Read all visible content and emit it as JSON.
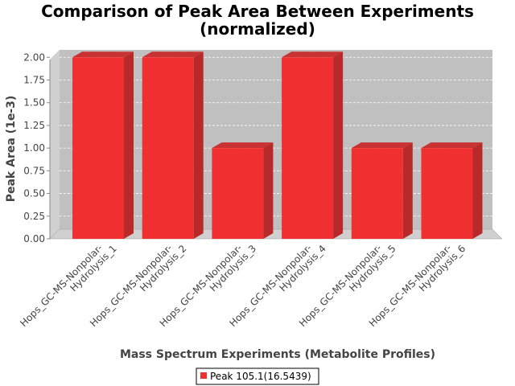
{
  "chart_data": {
    "type": "bar",
    "title_lines": [
      "Comparison of Peak Area Between Experiments",
      "(normalized)"
    ],
    "xlabel": "Mass Spectrum Experiments (Metabolite Profiles)",
    "ylabel": "Peak Area (1e-3)",
    "categories": [
      [
        "Hops_GC-MS-Nonpolar-",
        "Hydrolysis_1"
      ],
      [
        "Hops_GC-MS-Nonpolar-",
        "Hydrolysis_2"
      ],
      [
        "Hops_GC-MS-Nonpolar-",
        "Hydrolysis_3"
      ],
      [
        "Hops_GC-MS-Nonpolar-",
        "Hydrolysis_4"
      ],
      [
        "Hops_GC-MS-Nonpolar-",
        "Hydrolysis_5"
      ],
      [
        "Hops_GC-MS-Nonpolar-",
        "Hydrolysis_6"
      ]
    ],
    "series": [
      {
        "name": "Peak 105.1(16.5439)",
        "values": [
          2.0,
          2.0,
          1.0,
          2.0,
          1.0,
          1.0
        ]
      }
    ],
    "ylim": [
      0,
      2.1
    ],
    "yticks": [
      "0.00",
      "0.25",
      "0.50",
      "0.75",
      "1.00",
      "1.25",
      "1.50",
      "1.75",
      "2.00"
    ],
    "grid": true,
    "legend_position": "bottom",
    "colors": {
      "bar_front": "#f03030",
      "bar_side": "#b82a2a",
      "bar_top": "#c83232",
      "plot_background": "#c0c0c0",
      "plot_wall": "#d0d0d0",
      "grid": "#ffffff"
    }
  }
}
